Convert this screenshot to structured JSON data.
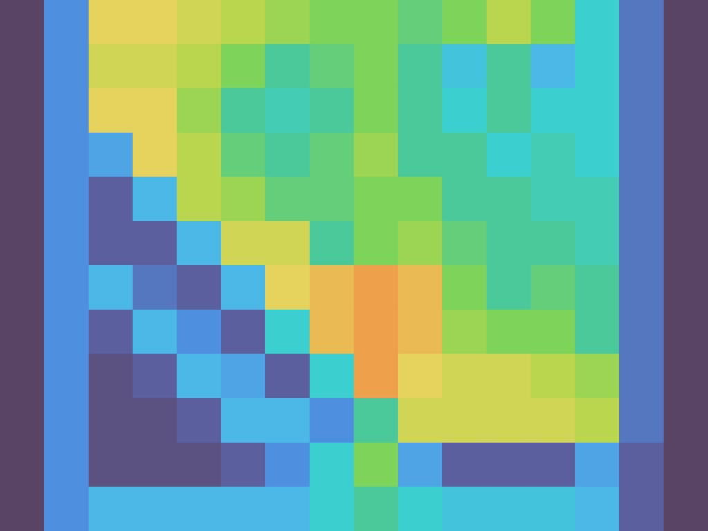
{
  "chart_data": {
    "type": "heatmap",
    "tick_labels": false,
    "grid": false,
    "color_range": [
      0,
      10
    ],
    "cells": [
      [
        0,
        2,
        8,
        8,
        7.5,
        7,
        6.5,
        6,
        6,
        5.5,
        6,
        7,
        6,
        4,
        1.5,
        0
      ],
      [
        0,
        2,
        7.5,
        7.5,
        7,
        6,
        5,
        5.5,
        6,
        5,
        3.5,
        5,
        3,
        4,
        1.5,
        0
      ],
      [
        0,
        2,
        8,
        8,
        6.5,
        5,
        4.5,
        5,
        6,
        5,
        4,
        5,
        4,
        4,
        1.5,
        0
      ],
      [
        0,
        2,
        2.5,
        8,
        7,
        5.5,
        5,
        5.5,
        6.5,
        5,
        5,
        4,
        4.5,
        4,
        1.5,
        0
      ],
      [
        0,
        2,
        1,
        3,
        7,
        6.5,
        5.5,
        5.5,
        6,
        6,
        5,
        5,
        4.5,
        4.5,
        1.5,
        0
      ],
      [
        0,
        2,
        1,
        1,
        3,
        7.5,
        7.5,
        5,
        6,
        6.5,
        5.5,
        5,
        5,
        4.5,
        1.5,
        0
      ],
      [
        0,
        2,
        3,
        1.5,
        1,
        3,
        8,
        8.5,
        9,
        8.5,
        6,
        5,
        5.5,
        5,
        1.5,
        0
      ],
      [
        0,
        2,
        1,
        3,
        2,
        1,
        4,
        8.5,
        9,
        8.5,
        6.5,
        6,
        6,
        5,
        1.5,
        0
      ],
      [
        0,
        2,
        0.5,
        1,
        3,
        2.5,
        1,
        4,
        9,
        8,
        7.5,
        7.5,
        7,
        6.5,
        1.5,
        0
      ],
      [
        0,
        2,
        0.5,
        0.5,
        1,
        3,
        3,
        2,
        5,
        7.5,
        7.5,
        7.5,
        7.5,
        7,
        1.5,
        0
      ],
      [
        0,
        2,
        0.5,
        0.5,
        0.5,
        1,
        2,
        4,
        6,
        2.5,
        1,
        1,
        1,
        2.5,
        1,
        0
      ],
      [
        0,
        2,
        3,
        3,
        3,
        3,
        3,
        4,
        5,
        4,
        3.5,
        3.5,
        3.5,
        3,
        1,
        0
      ]
    ]
  }
}
